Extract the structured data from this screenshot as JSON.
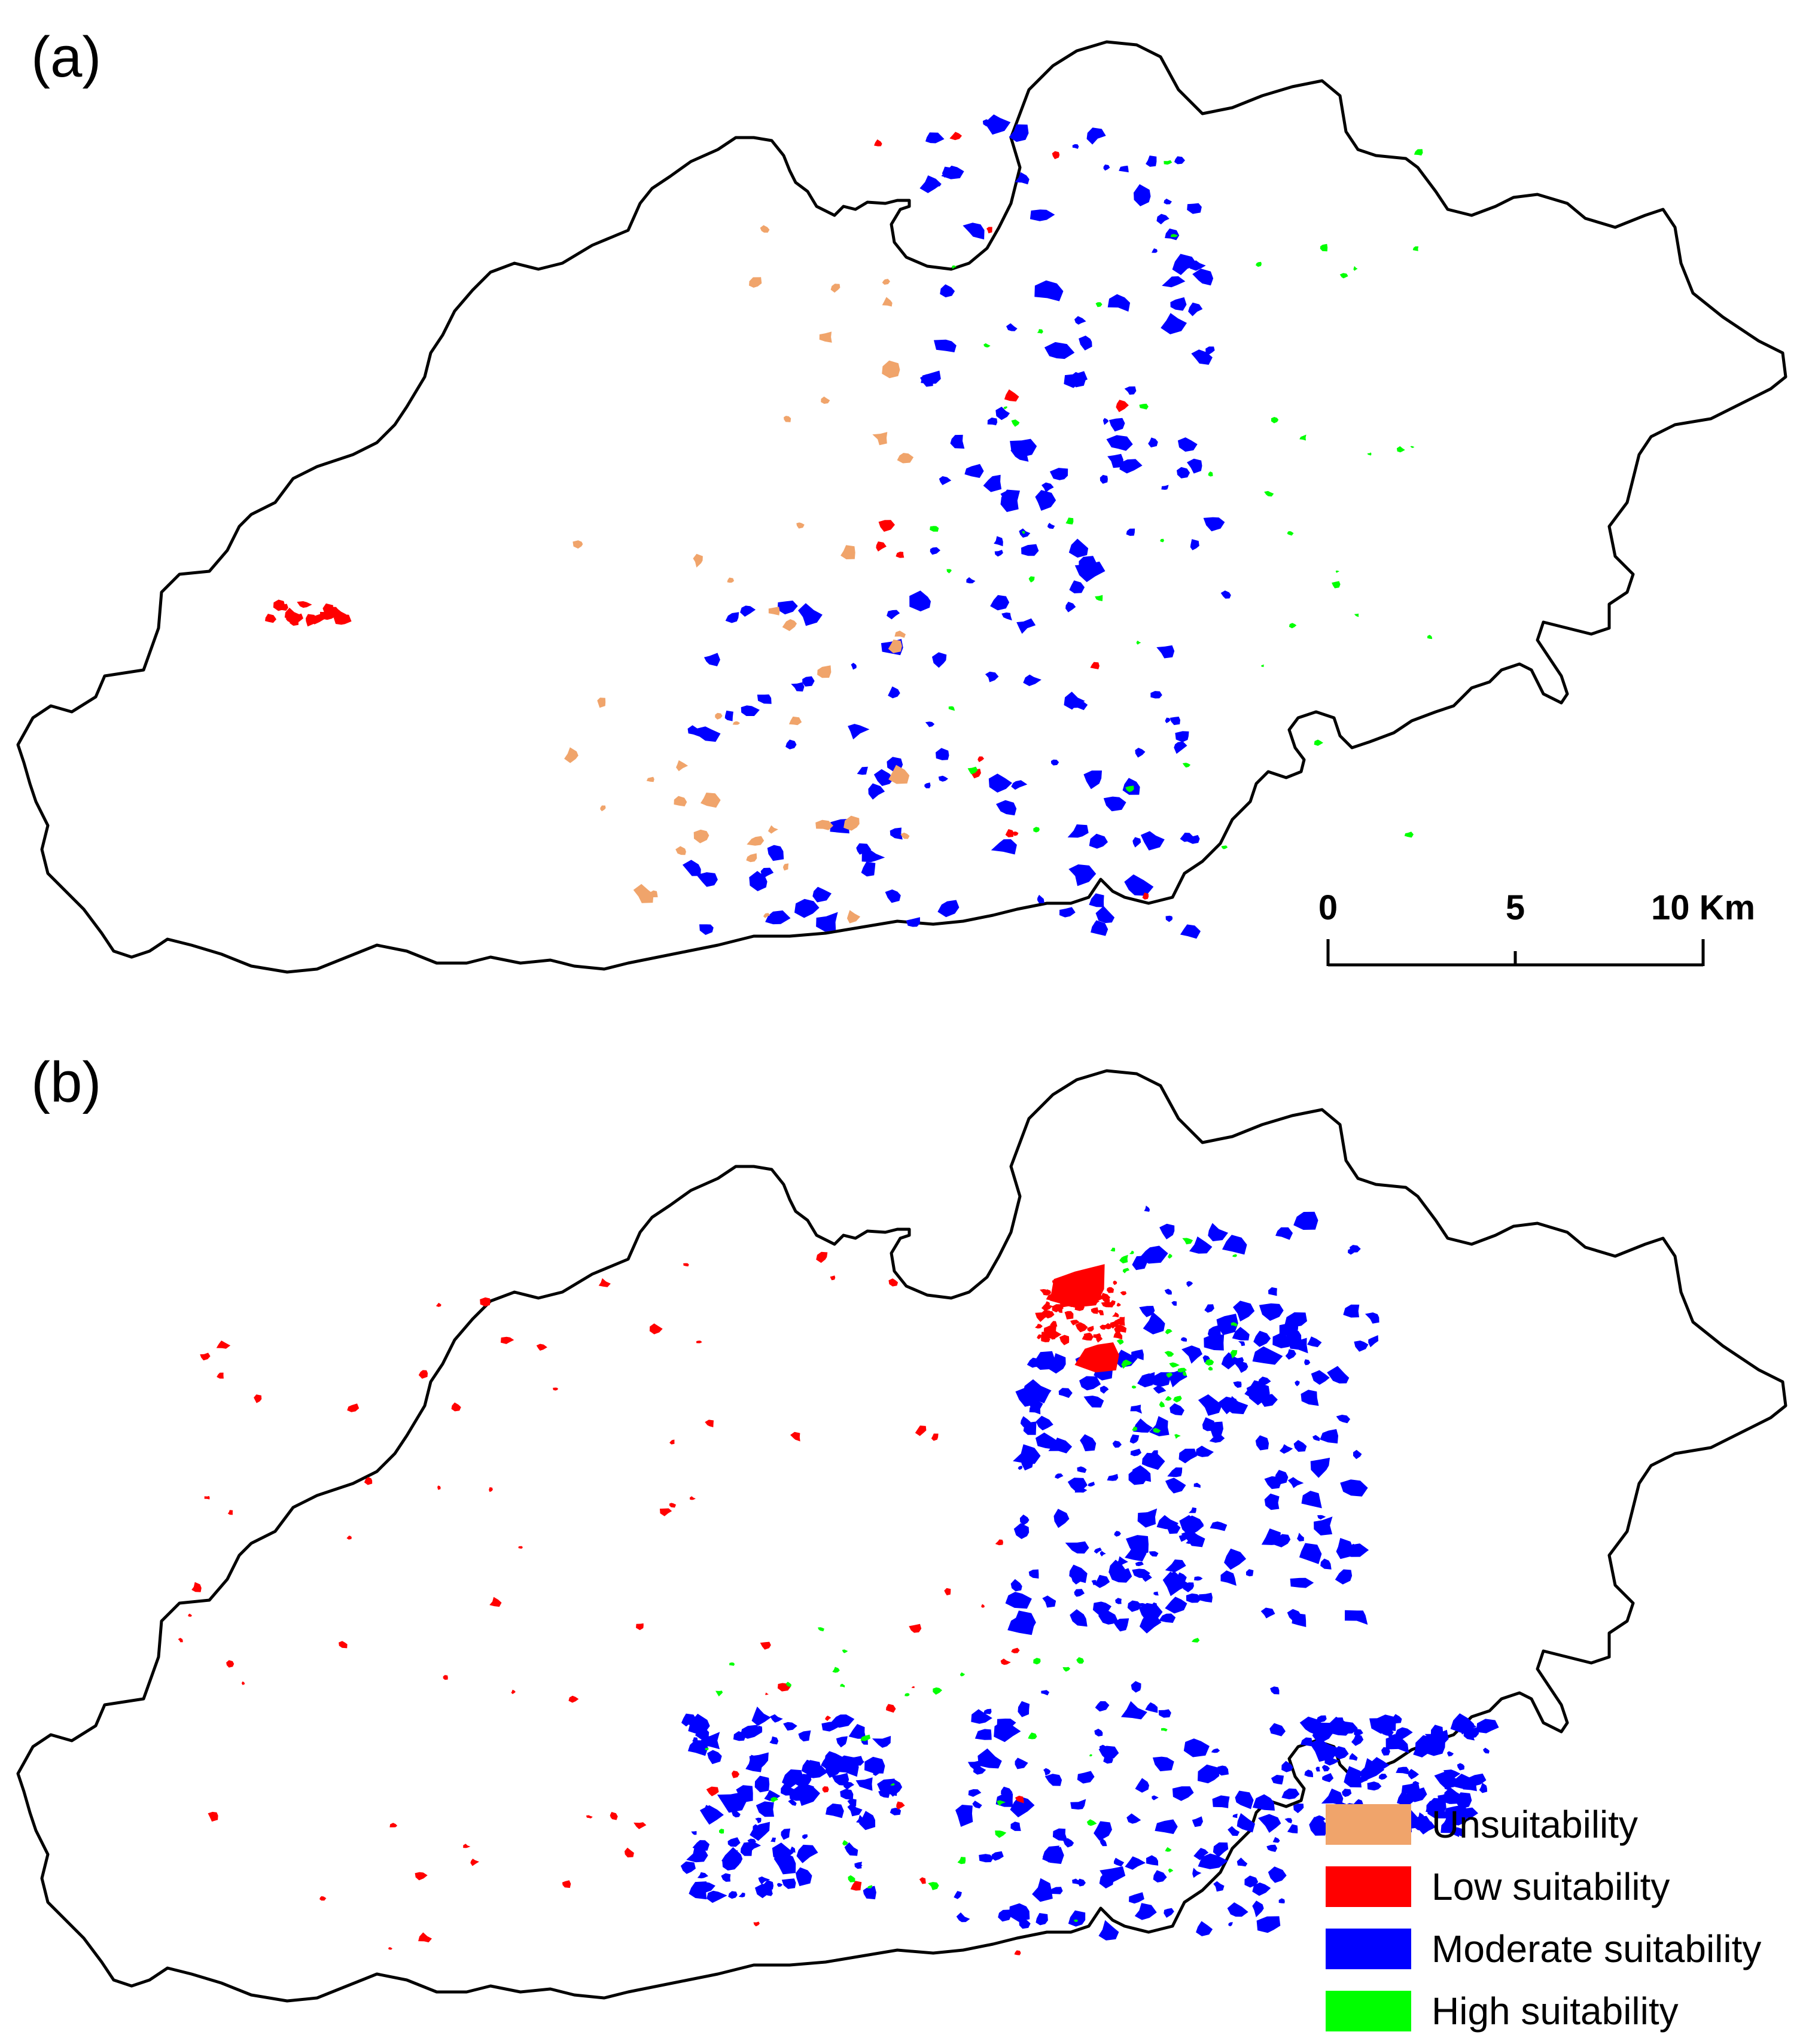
{
  "panels": {
    "a": {
      "label": "(a)"
    },
    "b": {
      "label": "(b)"
    }
  },
  "scale_bar": {
    "ticks": [
      "0",
      "5",
      "10 Km"
    ]
  },
  "legend": {
    "items": [
      {
        "label": "Unsuitability",
        "color": "#F0A46B"
      },
      {
        "label": "Low suitability",
        "color": "#FF0000"
      },
      {
        "label": "Moderate suitability",
        "color": "#0000FF"
      },
      {
        "label": "High suitability",
        "color": "#00FF00"
      }
    ]
  },
  "colors": {
    "outline": "#000000",
    "unsuitability": "#F0A46B",
    "low": "#FF0000",
    "moderate": "#0000FF",
    "high": "#00FF00"
  }
}
